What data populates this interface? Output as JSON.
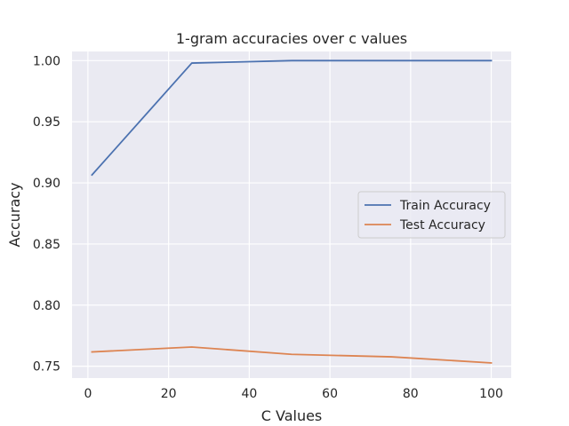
{
  "chart_data": {
    "type": "line",
    "title": "1-gram accuracies over c values",
    "xlabel": "C Values",
    "ylabel": "Accuracy",
    "x": [
      1,
      25.75,
      50.5,
      75.25,
      100
    ],
    "series": [
      {
        "name": "Train Accuracy",
        "color": "#4c72b0",
        "values": [
          0.9065,
          0.998,
          1.0,
          1.0,
          1.0
        ]
      },
      {
        "name": "Test Accuracy",
        "color": "#dd8452",
        "values": [
          0.7617,
          0.7657,
          0.7597,
          0.7577,
          0.7527
        ]
      }
    ],
    "xlim": [
      -3.95,
      104.95
    ],
    "ylim": [
      0.7403,
      1.0075
    ],
    "xticks": [
      0,
      20,
      40,
      60,
      80,
      100
    ],
    "xtick_labels": [
      "0",
      "20",
      "40",
      "60",
      "80",
      "100"
    ],
    "yticks": [
      0.75,
      0.8,
      0.85,
      0.9,
      0.95,
      1.0
    ],
    "ytick_labels": [
      "0.75",
      "0.80",
      "0.85",
      "0.90",
      "0.95",
      "1.00"
    ],
    "grid": true,
    "legend_position": "center-right",
    "background_color": "#eaeaf2",
    "grid_color": "#ffffff"
  }
}
